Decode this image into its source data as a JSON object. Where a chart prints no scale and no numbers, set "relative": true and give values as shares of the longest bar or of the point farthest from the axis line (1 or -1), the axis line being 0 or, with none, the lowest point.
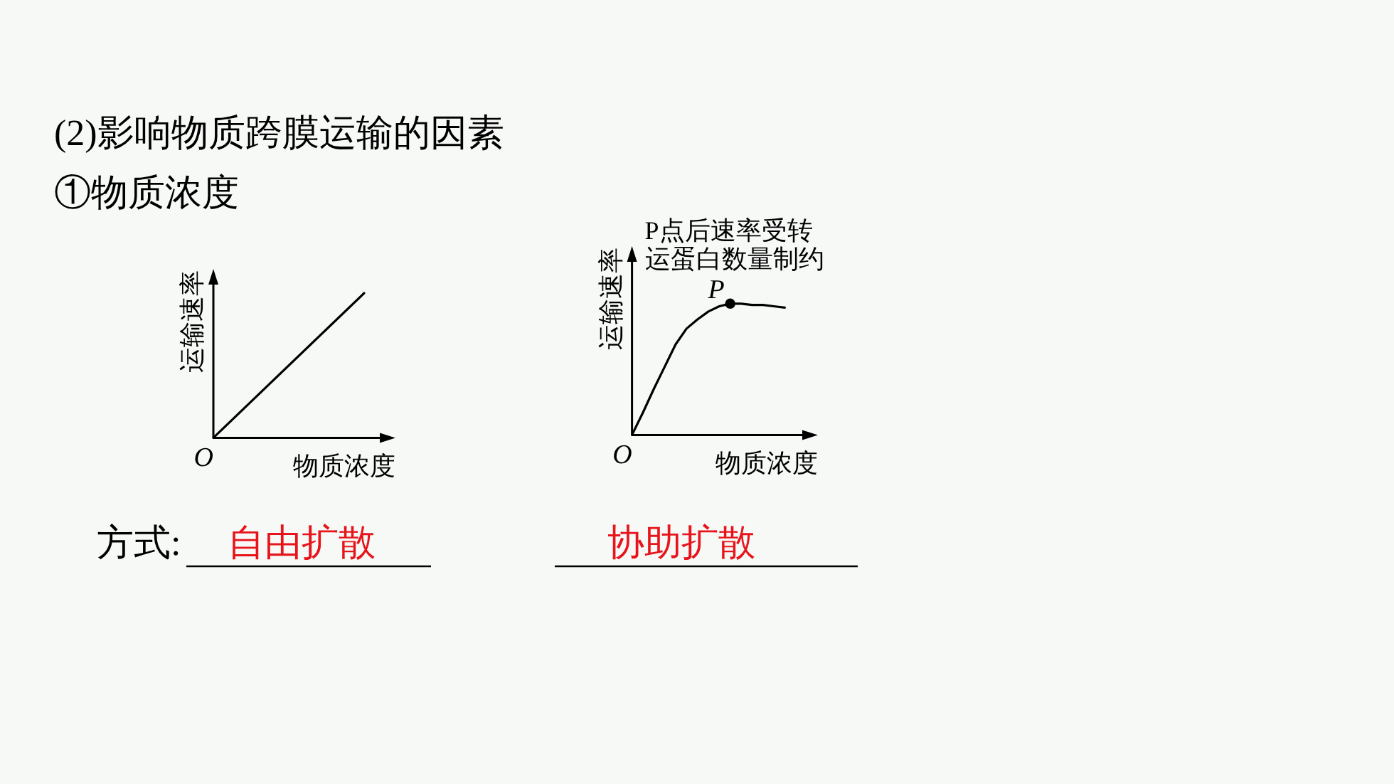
{
  "chart_data": [
    {
      "type": "other",
      "title": "(2)影响物质跨膜运输的因素",
      "subtitle": "①物质浓度",
      "annotations": [
        "方式:",
        "自由扩散",
        "协助扩散"
      ]
    },
    {
      "type": "line",
      "relative": true,
      "categories": [
        null,
        null
      ],
      "series": [
        {
          "color": "#000000",
          "values": [
            0,
            1
          ]
        }
      ],
      "xlabel": "物质浓度",
      "ylabel": "运输速率",
      "annotations": [
        "O"
      ]
    },
    {
      "type": "line",
      "relative": true,
      "categories": [
        null,
        null,
        null,
        null,
        null,
        null,
        null,
        null,
        null,
        null,
        null,
        null,
        null,
        null,
        null
      ],
      "series": [
        {
          "type": "line",
          "color": "#000000",
          "values": [
            0,
            0.17,
            0.35,
            0.52,
            0.69,
            0.81,
            0.88,
            0.94,
            0.98,
            1,
            1,
            0.99,
            0.99,
            0.98,
            0.97
          ]
        }
      ],
      "xlabel": "物质浓度",
      "ylabel": "运输速率",
      "annotations": [
        "O",
        "P点后速率受转运蛋白数量制约",
        {
          "text": "P",
          "y": 1
        }
      ]
    }
  ]
}
